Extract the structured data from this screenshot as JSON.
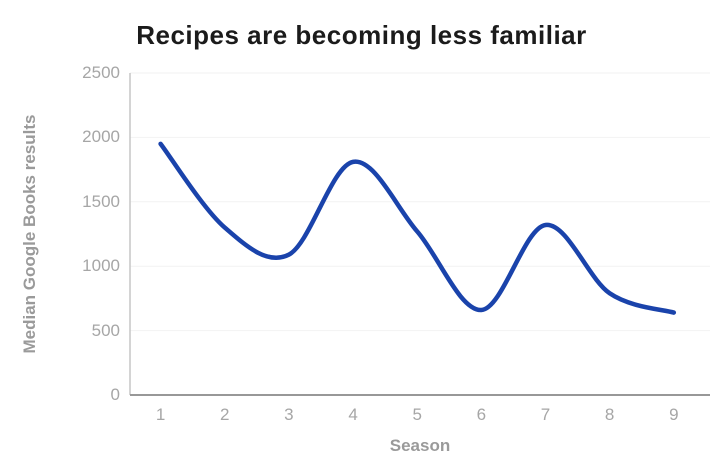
{
  "chart_data": {
    "type": "line",
    "title": "Recipes are becoming less familiar",
    "xlabel": "Season",
    "ylabel": "Median Google Books results",
    "categories": [
      1,
      2,
      3,
      4,
      5,
      6,
      7,
      8,
      9
    ],
    "series": [
      {
        "name": "Median Google Books results",
        "values": [
          1950,
          1300,
          1090,
          1810,
          1270,
          660,
          1320,
          790,
          640
        ]
      }
    ],
    "ylim": [
      0,
      2500
    ],
    "yticks": [
      0,
      500,
      1000,
      1500,
      2000,
      2500
    ],
    "grid": "horizontal",
    "legend": "none",
    "smoothed": true
  },
  "colors": {
    "line": "#1a43ab",
    "title_text": "#1b1b1b",
    "axis_text": "#a6a6a6",
    "axis_title_text": "#9a9a9a",
    "x_axis_line": "#989898",
    "y_axis_line": "#c6c6c6",
    "gridline": "#f2f2f2"
  }
}
